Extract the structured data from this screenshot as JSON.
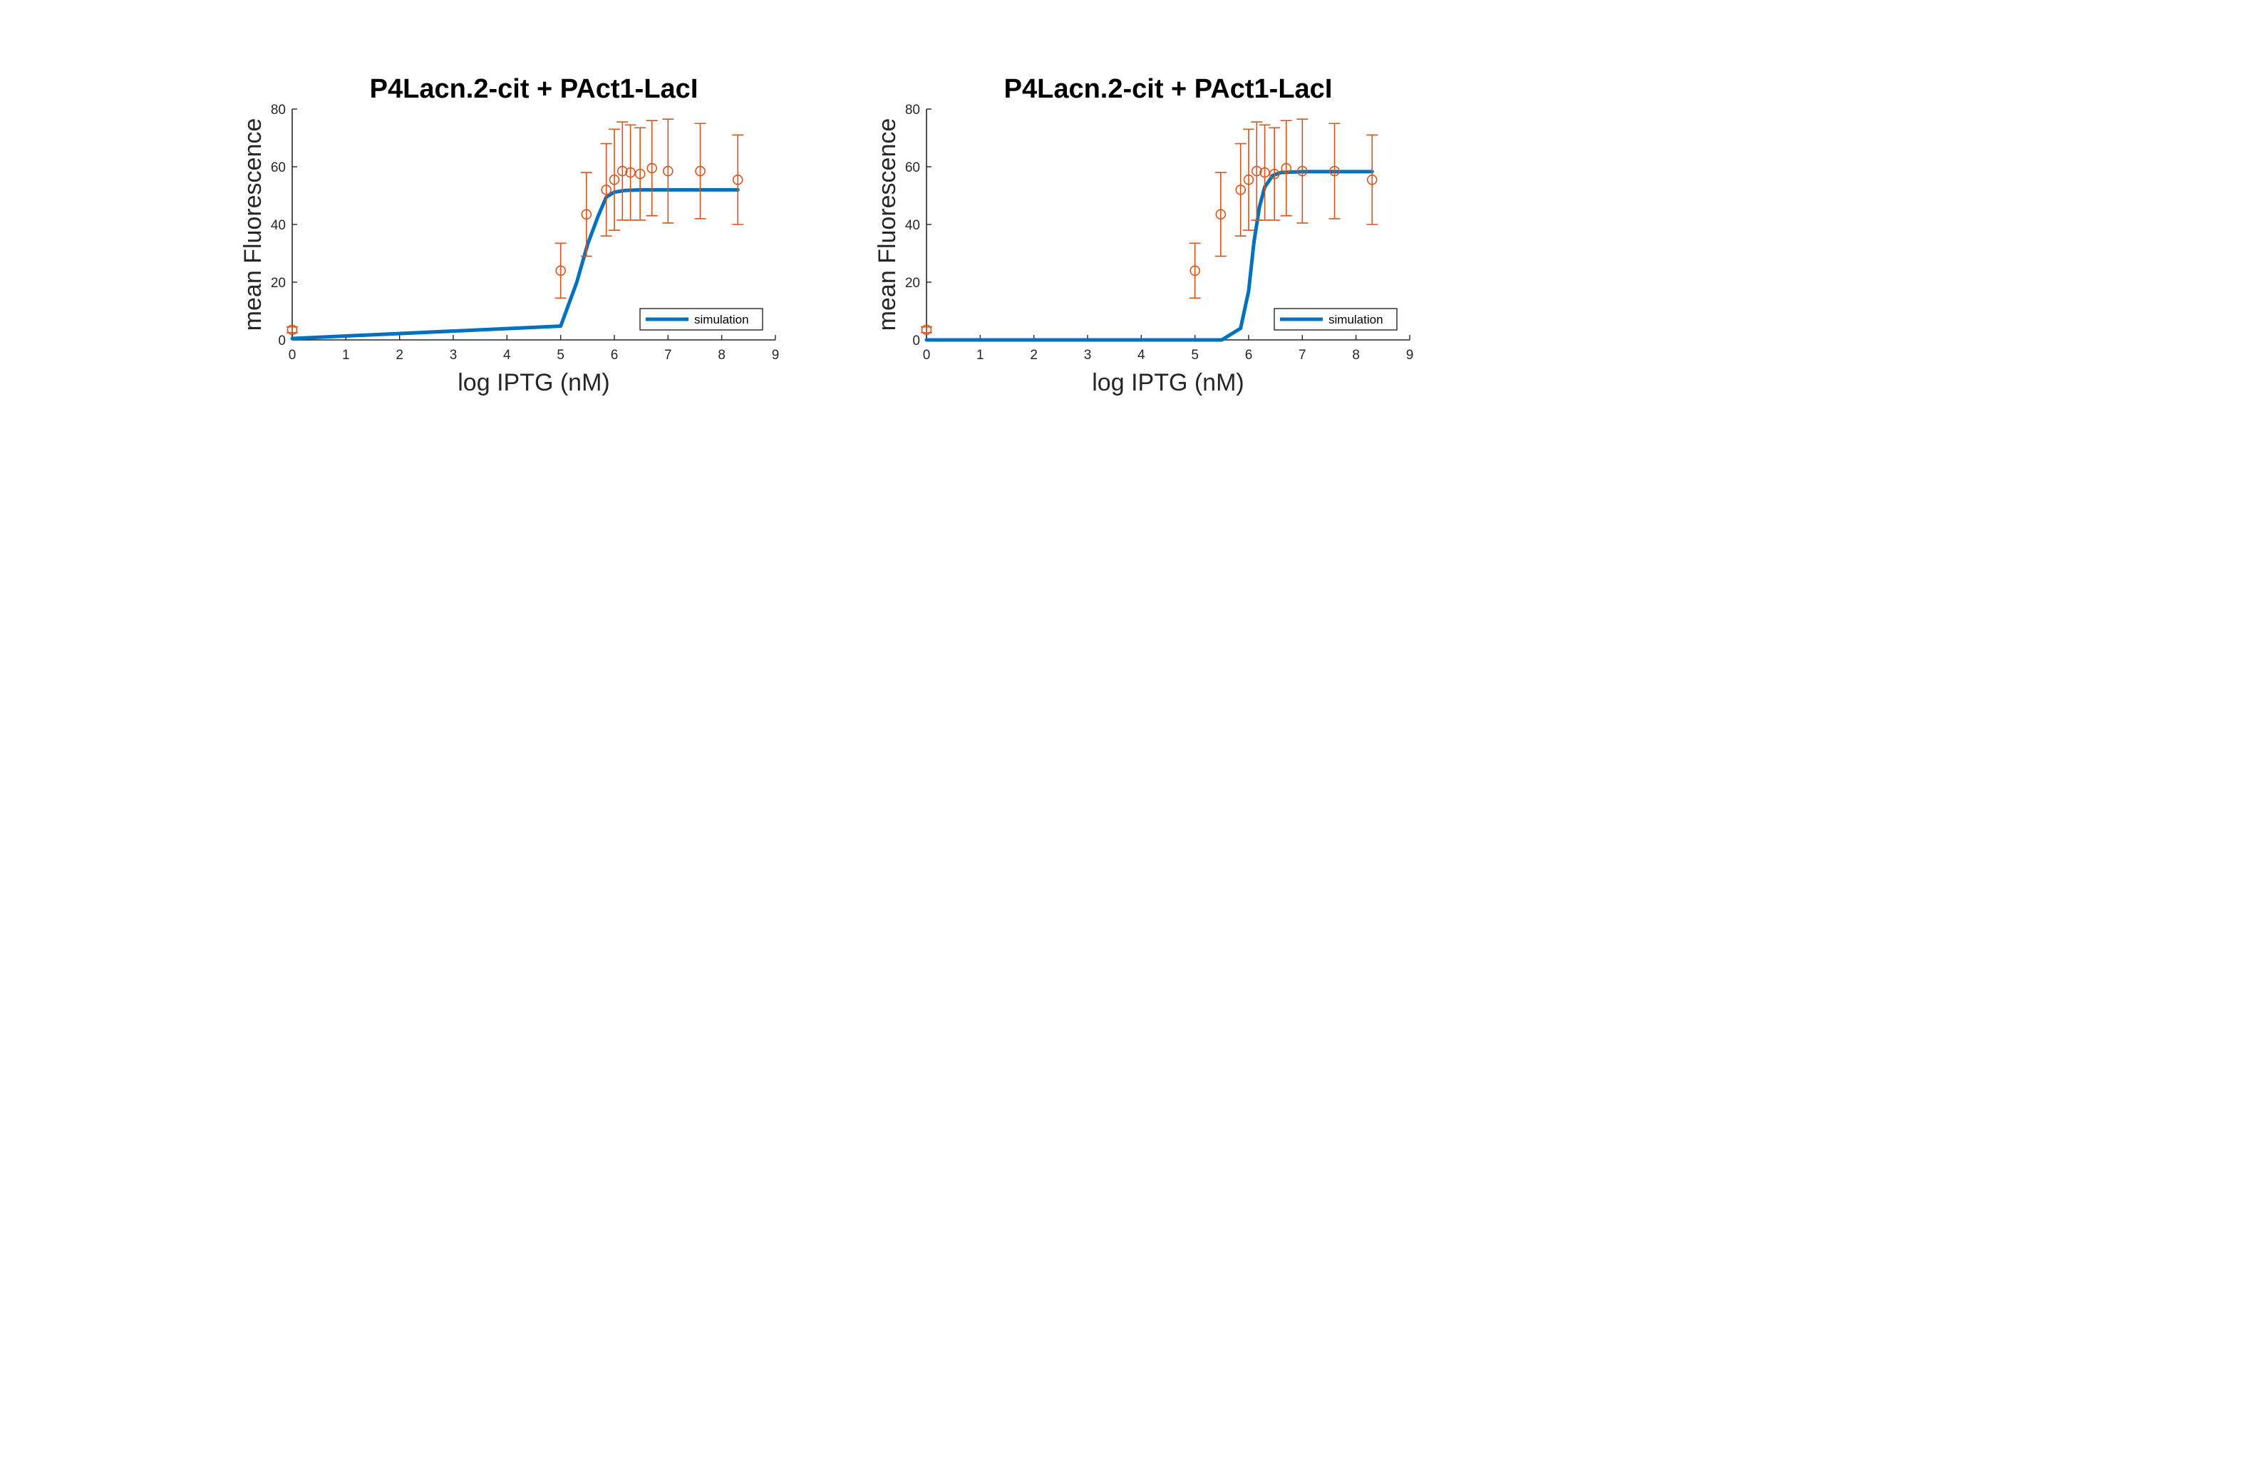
{
  "chart_data": [
    {
      "type": "scatter",
      "title": "P4Lacn.2-cit + PAct1-LacI",
      "xlabel": "log IPTG (nM)",
      "ylabel": "mean Fluorescence",
      "xlim": [
        0,
        9
      ],
      "ylim": [
        0,
        80
      ],
      "xticks": [
        "0",
        "1",
        "2",
        "3",
        "4",
        "5",
        "6",
        "7",
        "8",
        "9"
      ],
      "yticks": [
        "0",
        "20",
        "40",
        "60",
        "80"
      ],
      "grid": false,
      "legend": {
        "position": "lower-right",
        "entries": [
          "simulation"
        ]
      },
      "colors": {
        "simulation": "#0072BD",
        "data": "#D95319"
      },
      "series": [
        {
          "name": "simulation",
          "style": "line",
          "x": [
            0,
            5,
            5.3,
            5.5,
            5.7,
            5.85,
            6.0,
            6.2,
            6.5,
            7,
            8.3
          ],
          "y": [
            0.5,
            4.8,
            20,
            33,
            43,
            49.5,
            51.2,
            51.8,
            52,
            52,
            52
          ]
        },
        {
          "style": "errorbar-marker",
          "x": [
            0,
            5,
            5.48,
            5.85,
            6.0,
            6.15,
            6.3,
            6.48,
            6.7,
            7.0,
            7.6,
            8.3
          ],
          "y": [
            3.5,
            24,
            43.5,
            52,
            55.5,
            58.5,
            58,
            57.5,
            59.5,
            58.5,
            58.5,
            55.5
          ],
          "err": [
            1,
            9.5,
            14.5,
            16,
            17.5,
            17,
            16.5,
            16,
            16.5,
            18,
            16.5,
            15.5
          ]
        }
      ]
    },
    {
      "type": "scatter",
      "title": "P4Lacn.2-cit + PAct1-LacI",
      "xlabel": "log IPTG (nM)",
      "ylabel": "mean Fluorescence",
      "xlim": [
        0,
        9
      ],
      "ylim": [
        0,
        80
      ],
      "xticks": [
        "0",
        "1",
        "2",
        "3",
        "4",
        "5",
        "6",
        "7",
        "8",
        "9"
      ],
      "yticks": [
        "0",
        "20",
        "40",
        "60",
        "80"
      ],
      "grid": false,
      "legend": {
        "position": "lower-right",
        "entries": [
          "simulation"
        ]
      },
      "colors": {
        "simulation": "#0072BD",
        "data": "#D95319"
      },
      "series": [
        {
          "name": "simulation",
          "style": "line",
          "x": [
            0,
            5.0,
            5.5,
            5.85,
            6.0,
            6.1,
            6.2,
            6.3,
            6.45,
            6.6,
            7,
            8.3
          ],
          "y": [
            0,
            0,
            0,
            4,
            17,
            34,
            46,
            53,
            57,
            58,
            58.3,
            58.3
          ]
        },
        {
          "style": "errorbar-marker",
          "x": [
            0,
            5,
            5.48,
            5.85,
            6.0,
            6.15,
            6.3,
            6.48,
            6.7,
            7.0,
            7.6,
            8.3
          ],
          "y": [
            3.5,
            24,
            43.5,
            52,
            55.5,
            58.5,
            58,
            57.5,
            59.5,
            58.5,
            58.5,
            55.5
          ],
          "err": [
            1,
            9.5,
            14.5,
            16,
            17.5,
            17,
            16.5,
            16,
            16.5,
            18,
            16.5,
            15.5
          ]
        }
      ]
    }
  ]
}
